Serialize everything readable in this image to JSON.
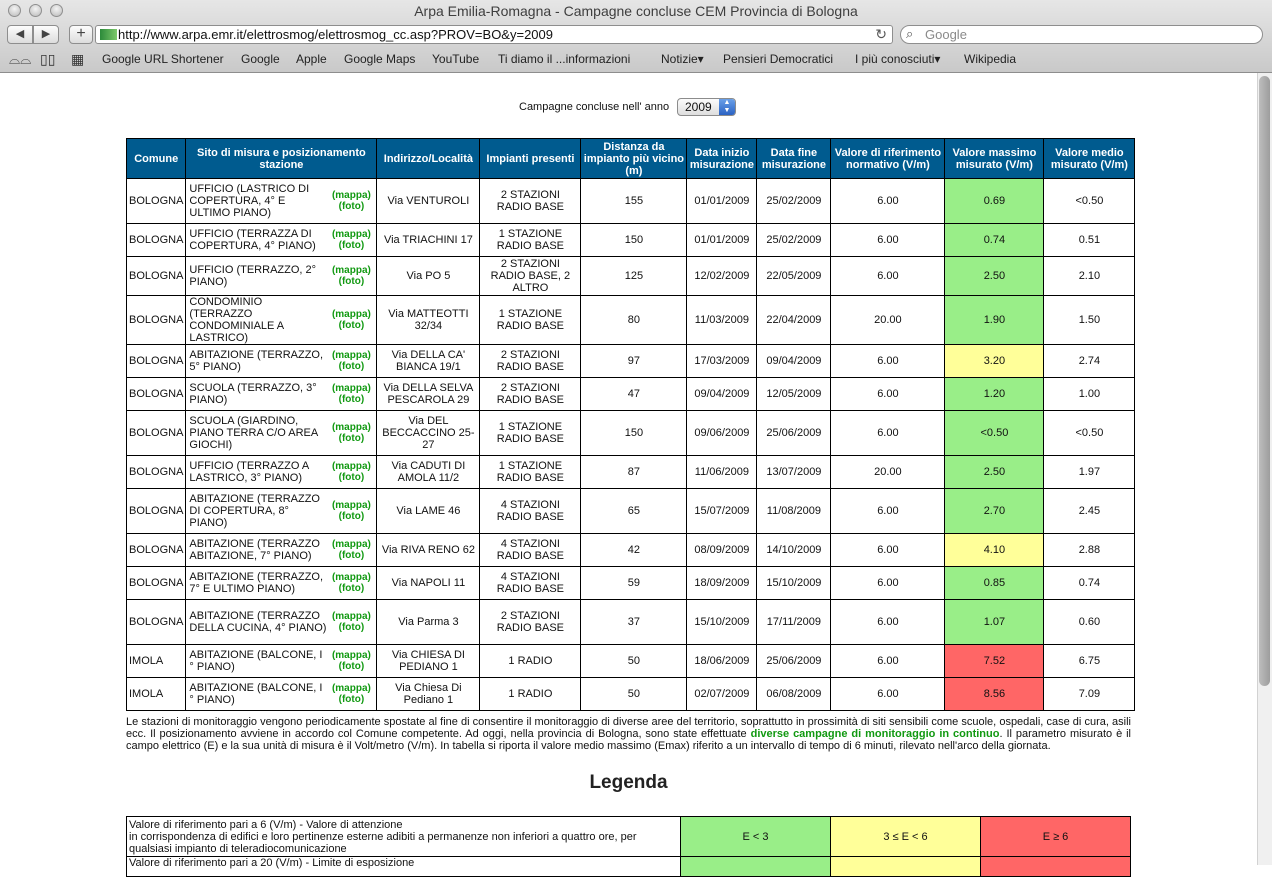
{
  "browser": {
    "window_title": "Arpa Emilia-Romagna - Campagne concluse CEM Provincia di Bologna",
    "url": "http://www.arpa.emr.it/elettrosmog/elettrosmog_cc.asp?PROV=BO&y=2009",
    "search_placeholder": "Google",
    "bookmarks": [
      {
        "label": "Google URL Shortener"
      },
      {
        "label": "Google"
      },
      {
        "label": "Apple"
      },
      {
        "label": "Google Maps"
      },
      {
        "label": "YouTube"
      },
      {
        "label": "Ti diamo il ...informazioni"
      },
      {
        "label": "Notizie▾"
      },
      {
        "label": "Pensieri Democratici"
      },
      {
        "label": "I più conosciuti▾"
      },
      {
        "label": "Wikipedia"
      }
    ]
  },
  "page": {
    "year_label": "Campagne concluse nell' anno",
    "year_selected": "2009",
    "columns": [
      "Comune",
      "Sito di misura e posizionamento stazione",
      "Indirizzo/Località",
      "Impianti presenti",
      "Distanza da impianto più vicino (m)",
      "Data inizio misurazione",
      "Data fine misurazione",
      "Valore di riferimento normativo (V/m)",
      "Valore massimo misurato (V/m)",
      "Valore medio misurato (V/m)"
    ],
    "link_map": "(mappa)",
    "link_photo": "(foto)",
    "rows": [
      {
        "comune": "BOLOGNA",
        "sito": "UFFICIO (LASTRICO DI COPERTURA, 4° E ULTIMO PIANO)",
        "indirizzo": "Via VENTUROLI",
        "impianti": "2 STAZIONI RADIO BASE",
        "distanza": "155",
        "inizio": "01/01/2009",
        "fine": "25/02/2009",
        "riferimento": "6.00",
        "massimo": "0.69",
        "medio": "<0.50",
        "level": "green"
      },
      {
        "comune": "BOLOGNA",
        "sito": "UFFICIO (TERRAZZA DI COPERTURA, 4° PIANO)",
        "indirizzo": "Via TRIACHINI 17",
        "impianti": "1 STAZIONE RADIO BASE",
        "distanza": "150",
        "inizio": "01/01/2009",
        "fine": "25/02/2009",
        "riferimento": "6.00",
        "massimo": "0.74",
        "medio": "0.51",
        "level": "green"
      },
      {
        "comune": "BOLOGNA",
        "sito": "UFFICIO (TERRAZZO, 2° PIANO)",
        "indirizzo": "Via PO 5",
        "impianti": "2 STAZIONI RADIO BASE, 2 ALTRO",
        "distanza": "125",
        "inizio": "12/02/2009",
        "fine": "22/05/2009",
        "riferimento": "6.00",
        "massimo": "2.50",
        "medio": "2.10",
        "level": "green"
      },
      {
        "comune": "BOLOGNA",
        "sito": "CONDOMINIO (TERRAZZO CONDOMINIALE A LASTRICO)",
        "indirizzo": "Via MATTEOTTI 32/34",
        "impianti": "1 STAZIONE RADIO BASE",
        "distanza": "80",
        "inizio": "11/03/2009",
        "fine": "22/04/2009",
        "riferimento": "20.00",
        "massimo": "1.90",
        "medio": "1.50",
        "level": "green"
      },
      {
        "comune": "BOLOGNA",
        "sito": "ABITAZIONE (TERRAZZO, 5° PIANO)",
        "indirizzo": "Via DELLA CA' BIANCA 19/1",
        "impianti": "2 STAZIONI RADIO BASE",
        "distanza": "97",
        "inizio": "17/03/2009",
        "fine": "09/04/2009",
        "riferimento": "6.00",
        "massimo": "3.20",
        "medio": "2.74",
        "level": "yellow"
      },
      {
        "comune": "BOLOGNA",
        "sito": "SCUOLA (TERRAZZO, 3° PIANO)",
        "indirizzo": "Via DELLA SELVA PESCAROLA 29",
        "impianti": "2 STAZIONI RADIO BASE",
        "distanza": "47",
        "inizio": "09/04/2009",
        "fine": "12/05/2009",
        "riferimento": "6.00",
        "massimo": "1.20",
        "medio": "1.00",
        "level": "green"
      },
      {
        "comune": "BOLOGNA",
        "sito": "SCUOLA (GIARDINO, PIANO TERRA C/O AREA GIOCHI)",
        "indirizzo": "Via DEL BECCACCINO 25-27",
        "impianti": "1 STAZIONE RADIO BASE",
        "distanza": "150",
        "inizio": "09/06/2009",
        "fine": "25/06/2009",
        "riferimento": "6.00",
        "massimo": "<0.50",
        "medio": "<0.50",
        "level": "green"
      },
      {
        "comune": "BOLOGNA",
        "sito": "UFFICIO (TERRAZZO A LASTRICO, 3° PIANO)",
        "indirizzo": "Via CADUTI DI AMOLA 11/2",
        "impianti": "1 STAZIONE RADIO BASE",
        "distanza": "87",
        "inizio": "11/06/2009",
        "fine": "13/07/2009",
        "riferimento": "20.00",
        "massimo": "2.50",
        "medio": "1.97",
        "level": "green"
      },
      {
        "comune": "BOLOGNA",
        "sito": "ABITAZIONE (TERRAZZO DI COPERTURA, 8° PIANO)",
        "indirizzo": "Via LAME 46",
        "impianti": "4 STAZIONI RADIO BASE",
        "distanza": "65",
        "inizio": "15/07/2009",
        "fine": "11/08/2009",
        "riferimento": "6.00",
        "massimo": "2.70",
        "medio": "2.45",
        "level": "green"
      },
      {
        "comune": "BOLOGNA",
        "sito": "ABITAZIONE (TERRAZZO ABITAZIONE, 7° PIANO)",
        "indirizzo": "Via RIVA RENO 62",
        "impianti": "4 STAZIONI RADIO BASE",
        "distanza": "42",
        "inizio": "08/09/2009",
        "fine": "14/10/2009",
        "riferimento": "6.00",
        "massimo": "4.10",
        "medio": "2.88",
        "level": "yellow"
      },
      {
        "comune": "BOLOGNA",
        "sito": "ABITAZIONE (TERRAZZO, 7° E ULTIMO PIANO)",
        "indirizzo": "Via NAPOLI 11",
        "impianti": "4 STAZIONI RADIO BASE",
        "distanza": "59",
        "inizio": "18/09/2009",
        "fine": "15/10/2009",
        "riferimento": "6.00",
        "massimo": "0.85",
        "medio": "0.74",
        "level": "green"
      },
      {
        "comune": "BOLOGNA",
        "sito": "ABITAZIONE (TERRAZZO DELLA CUCINA, 4° PIANO)",
        "indirizzo": "Via Parma 3",
        "impianti": "2 STAZIONI RADIO BASE",
        "distanza": "37",
        "inizio": "15/10/2009",
        "fine": "17/11/2009",
        "riferimento": "6.00",
        "massimo": "1.07",
        "medio": "0.60",
        "level": "green"
      },
      {
        "comune": "IMOLA",
        "sito": "ABITAZIONE (BALCONE, I ° PIANO)",
        "indirizzo": "Via CHIESA DI PEDIANO 1",
        "impianti": "1 RADIO",
        "distanza": "50",
        "inizio": "18/06/2009",
        "fine": "25/06/2009",
        "riferimento": "6.00",
        "massimo": "7.52",
        "medio": "6.75",
        "level": "red"
      },
      {
        "comune": "IMOLA",
        "sito": "ABITAZIONE (BALCONE, I ° PIANO)",
        "indirizzo": "Via Chiesa Di Pediano 1",
        "impianti": "1 RADIO",
        "distanza": "50",
        "inizio": "02/07/2009",
        "fine": "06/08/2009",
        "riferimento": "6.00",
        "massimo": "8.56",
        "medio": "7.09",
        "level": "red"
      }
    ],
    "note_before": "Le stazioni di monitoraggio vengono periodicamente spostate al fine di consentire il monitoraggio di diverse aree del territorio, soprattutto in prossimità di siti sensibili come scuole, ospedali, case di cura, asili ecc. Il posizionamento avviene in accordo col Comune competente. Ad oggi, nella provincia di Bologna, sono state effettuate ",
    "note_link": "diverse campagne di monitoraggio in continuo",
    "note_after": ". Il parametro misurato è il campo elettrico (E) e la sua unità di misura è il Volt/metro (V/m). In tabella si riporta il valore medio massimo (Emax) riferito a un intervallo di tempo di 6 minuti, rilevato nell'arco della giornata.",
    "legend_title": "Legenda",
    "legend_row1_text": "Valore di riferimento pari a 6 (V/m) - Valore di attenzione\nin corrispondenza di edifici e loro pertinenze esterne adibiti a permanenze non inferiori a quattro ore, per qualsiasi impianto di teleradiocomunicazione",
    "legend_row1_cells": [
      "E < 3",
      "3 ≤ E < 6",
      "E ≥ 6"
    ],
    "legend_row2_text": "Valore di riferimento pari a 20 (V/m) - Limite di esposizione"
  },
  "colors": {
    "header_bg": "#005b8f",
    "green": "#99ee88",
    "yellow": "#ffff99",
    "red": "#ff6666",
    "link_green": "#119911"
  }
}
